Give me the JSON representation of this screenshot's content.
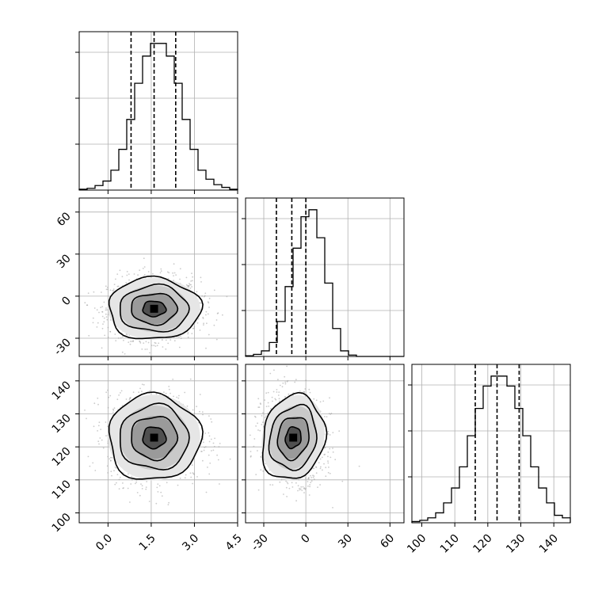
{
  "chart_data": {
    "type": "corner",
    "grid": true,
    "parameters": [
      {
        "range": [
          -1.0,
          4.5
        ],
        "ticks": [
          0.0,
          1.5,
          3.0,
          4.5
        ],
        "tick_labels": [
          "0.0",
          "1.5",
          "3.0",
          "4.5"
        ],
        "mean": 1.6,
        "std": 0.8,
        "quantiles": [
          0.8,
          1.6,
          2.35
        ],
        "hist_counts": [
          1,
          2,
          5,
          10,
          22,
          45,
          78,
          118,
          148,
          162,
          162,
          148,
          118,
          78,
          45,
          22,
          12,
          6,
          3,
          1
        ]
      },
      {
        "range": [
          -43,
          70
        ],
        "ticks": [
          -30,
          0,
          30,
          60
        ],
        "tick_labels": [
          "-30",
          "0",
          "30",
          "60"
        ],
        "mean": -9,
        "std": 11,
        "quantiles": [
          -21,
          -10,
          0
        ],
        "hist_counts": [
          1,
          3,
          8,
          20,
          50,
          100,
          155,
          200,
          210,
          170,
          105,
          40,
          8,
          2,
          0,
          0,
          0,
          0,
          0,
          0
        ]
      },
      {
        "range": [
          97,
          145
        ],
        "ticks": [
          100,
          110,
          120,
          130,
          140
        ],
        "tick_labels": [
          "100",
          "110",
          "120",
          "130",
          "140"
        ],
        "mean": 122.8,
        "std": 6.5,
        "quantiles": [
          116.2,
          122.8,
          129.5
        ],
        "hist_counts": [
          1,
          2,
          4,
          8,
          16,
          28,
          45,
          70,
          92,
          110,
          118,
          118,
          110,
          92,
          70,
          45,
          28,
          16,
          6,
          4
        ]
      }
    ],
    "pairs": [
      {
        "x_param": 0,
        "y_param": 1,
        "correlation": 0.0
      },
      {
        "x_param": 0,
        "y_param": 2,
        "correlation": 0.0
      },
      {
        "x_param": 1,
        "y_param": 2,
        "correlation": -0.1
      }
    ]
  }
}
